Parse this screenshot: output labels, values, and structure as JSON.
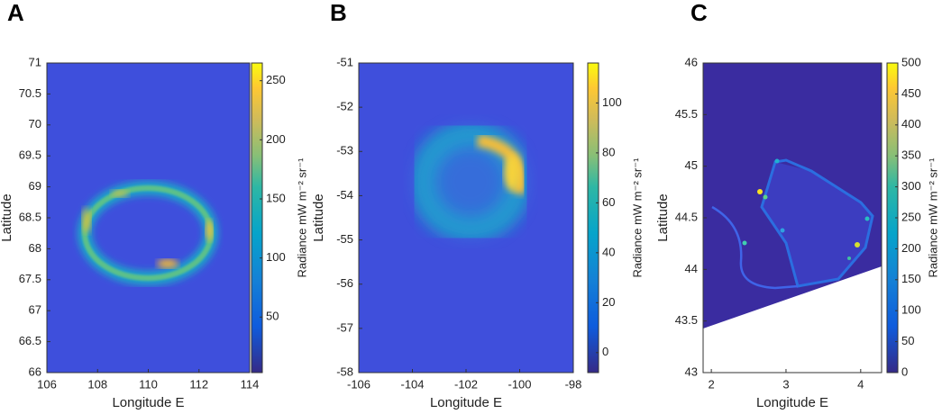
{
  "chart_data": [
    {
      "type": "heatmap",
      "panel": "A",
      "xlabel": "Longitude E",
      "ylabel": "Latitude",
      "xlim": [
        106,
        114
      ],
      "xticks": [
        106,
        108,
        110,
        112,
        114
      ],
      "ylim": [
        66,
        71
      ],
      "yticks": [
        66,
        66.5,
        67,
        67.5,
        68,
        68.5,
        69,
        69.5,
        70,
        70.5,
        71
      ],
      "colorbar": {
        "label": "Radiance mW m⁻² sr⁻¹",
        "lim": [
          3,
          265
        ],
        "ticks": [
          50,
          100,
          150,
          200,
          250
        ]
      }
    },
    {
      "type": "heatmap",
      "panel": "B",
      "xlabel": "Longitude E",
      "ylabel": "Latitude",
      "xlim": [
        -106,
        -98
      ],
      "xticks": [
        -106,
        -104,
        -102,
        -100,
        -98
      ],
      "ylim": [
        -58,
        -51
      ],
      "yticks": [
        -58,
        -57,
        -56,
        -55,
        -54,
        -53,
        -52,
        -51
      ],
      "colorbar": {
        "label": "Radiance mW m⁻² sr⁻¹",
        "lim": [
          -8,
          116
        ],
        "ticks": [
          0,
          20,
          40,
          60,
          80,
          100
        ]
      }
    },
    {
      "type": "heatmap",
      "panel": "C",
      "xlabel": "Longitude E",
      "ylabel": "Latitude",
      "xlim": [
        1.89,
        4.28
      ],
      "xticks": [
        2,
        3,
        4
      ],
      "ylim": [
        43,
        46
      ],
      "yticks": [
        43,
        43.5,
        44,
        44.5,
        45,
        45.5,
        46
      ],
      "colorbar": {
        "label": "Radiance mW m⁻² sr⁻¹",
        "lim": [
          0,
          500
        ],
        "ticks": [
          0,
          50,
          100,
          150,
          200,
          250,
          300,
          350,
          400,
          450,
          500
        ]
      }
    }
  ]
}
